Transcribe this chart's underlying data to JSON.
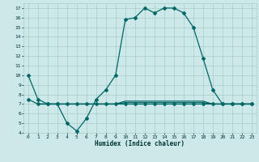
{
  "xlabel": "Humidex (Indice chaleur)",
  "bg_color": "#cce8e8",
  "grid_color": "#aacccc",
  "line_color": "#006666",
  "xlim": [
    -0.5,
    23.5
  ],
  "ylim": [
    4,
    17.5
  ],
  "xticks": [
    0,
    1,
    2,
    3,
    4,
    5,
    6,
    7,
    8,
    9,
    10,
    11,
    12,
    13,
    14,
    15,
    16,
    17,
    18,
    19,
    20,
    21,
    22,
    23
  ],
  "yticks": [
    4,
    5,
    6,
    7,
    8,
    9,
    10,
    11,
    12,
    13,
    14,
    15,
    16,
    17
  ],
  "line1_x": [
    0,
    1,
    2,
    3,
    4,
    5,
    6,
    7,
    8,
    9,
    10,
    11,
    12,
    13,
    14,
    15,
    16,
    17,
    18,
    19,
    20,
    21,
    22,
    23
  ],
  "line1_y": [
    10,
    7.5,
    7,
    7,
    5,
    4.2,
    5.5,
    7.5,
    8.5,
    10,
    15.8,
    16,
    17,
    16.5,
    17,
    17,
    16.5,
    15,
    11.8,
    8.5,
    7,
    7,
    7,
    7
  ],
  "line2_x": [
    0,
    1,
    2,
    3,
    4,
    5,
    6,
    7,
    8,
    9,
    10,
    11,
    12,
    13,
    14,
    15,
    16,
    17,
    18,
    19,
    20,
    21,
    22,
    23
  ],
  "line2_y": [
    7.5,
    7,
    7,
    7,
    7,
    7,
    7,
    7,
    7,
    7,
    7,
    7,
    7,
    7,
    7,
    7,
    7,
    7,
    7,
    7,
    7,
    7,
    7,
    7
  ],
  "line3_x": [
    1,
    2,
    3,
    4,
    5,
    6,
    7,
    8,
    9,
    10,
    11,
    12,
    13,
    14,
    15,
    16,
    17,
    18,
    19,
    20,
    21,
    22,
    23
  ],
  "line3_y": [
    7,
    7,
    7,
    7,
    7,
    7,
    7,
    7,
    7,
    7.3,
    7.3,
    7.3,
    7.3,
    7.3,
    7.3,
    7.3,
    7.3,
    7.3,
    7,
    7,
    7,
    7,
    7
  ],
  "line4_x": [
    1,
    2,
    3,
    4,
    5,
    6,
    7,
    8,
    9,
    10,
    11,
    12,
    13,
    14,
    15,
    16,
    17,
    18,
    19,
    20,
    21,
    22,
    23
  ],
  "line4_y": [
    7,
    7,
    7,
    7,
    7,
    7,
    7,
    7,
    7,
    7.15,
    7.15,
    7.15,
    7.15,
    7.15,
    7.15,
    7.15,
    7.15,
    7.15,
    7,
    7,
    7,
    7,
    7
  ]
}
